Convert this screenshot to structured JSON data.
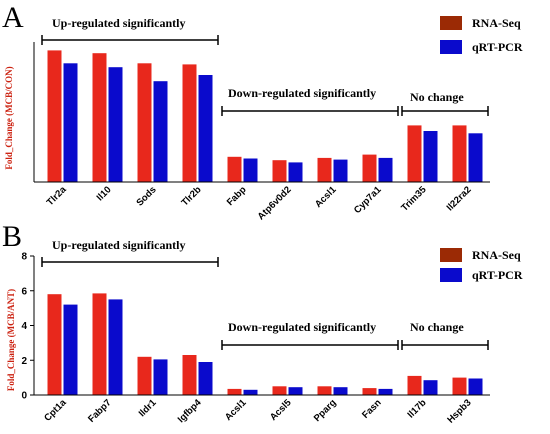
{
  "colors": {
    "rna_seq": "#e8281c",
    "qrt_pcr": "#0a0acc",
    "legend_rna": "#9b2a05",
    "legend_qrt": "#0a0acc"
  },
  "chart_data": [
    {
      "type": "bar",
      "panel": "A",
      "ylabel": "Fold_Change (MCB/CON)",
      "ylim": [
        0,
        2.5
      ],
      "categories": [
        "Tlr2a",
        "Il10",
        "Sods",
        "Tlr2b",
        "Fabp",
        "Atp6v0d2",
        "Acsl1",
        "Cyp7a1",
        "Trim35",
        "Il22ra2"
      ],
      "series": [
        {
          "name": "RNA-Seq",
          "values": [
            2.35,
            2.3,
            2.12,
            2.1,
            0.45,
            0.39,
            0.43,
            0.49,
            1.01,
            1.01
          ]
        },
        {
          "name": "qRT-PCR",
          "values": [
            2.12,
            2.05,
            1.8,
            1.91,
            0.42,
            0.35,
            0.4,
            0.43,
            0.91,
            0.87
          ]
        }
      ],
      "groups": [
        {
          "label": "Up-regulated significantly",
          "from": 0,
          "to": 3
        },
        {
          "label": "Down-regulated significantly",
          "from": 4,
          "to": 7
        },
        {
          "label": "No change",
          "from": 8,
          "to": 9
        }
      ],
      "legend": [
        "RNA-Seq",
        "qRT-PCR"
      ]
    },
    {
      "type": "bar",
      "panel": "B",
      "ylabel": "Fold_Change (MCB/ANT)",
      "ylim": [
        0,
        8
      ],
      "yticks": [
        "0",
        "2",
        "4",
        "6",
        "8"
      ],
      "categories": [
        "Cpt1a",
        "Fabp7",
        "Ildr1",
        "Igfbp4",
        "Acsl1",
        "Acsl5",
        "Pparg",
        "Fasn",
        "Il17b",
        "Hspb3"
      ],
      "series": [
        {
          "name": "RNA-Seq",
          "values": [
            5.8,
            5.85,
            2.2,
            2.3,
            0.35,
            0.5,
            0.5,
            0.4,
            1.1,
            1.0
          ]
        },
        {
          "name": "qRT-PCR",
          "values": [
            5.2,
            5.5,
            2.05,
            1.9,
            0.3,
            0.45,
            0.45,
            0.35,
            0.85,
            0.95
          ]
        }
      ],
      "groups": [
        {
          "label": "Up-regulated significantly",
          "from": 0,
          "to": 3
        },
        {
          "label": "Down-regulated significantly",
          "from": 4,
          "to": 7
        },
        {
          "label": "No change",
          "from": 8,
          "to": 9
        }
      ],
      "legend": [
        "RNA-Seq",
        "qRT-PCR"
      ]
    }
  ]
}
